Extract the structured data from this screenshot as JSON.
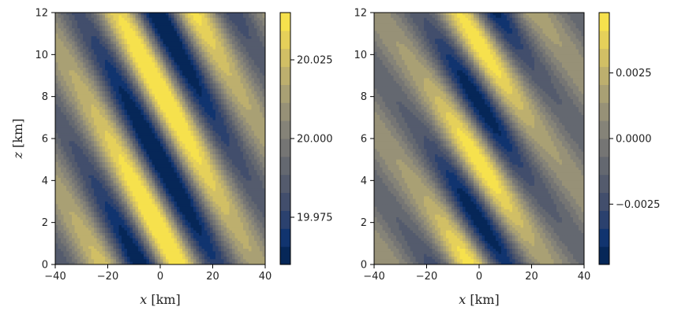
{
  "chart_data": [
    {
      "type": "heatmap",
      "subtype": "filled-contour",
      "xlabel_var": "x",
      "xlabel_unit": "[km]",
      "ylabel_var": "z",
      "ylabel_unit": "[km]",
      "xlim": [
        -40,
        40
      ],
      "ylim": [
        0,
        12
      ],
      "x_ticks": [
        "−40",
        "−20",
        "0",
        "20",
        "40"
      ],
      "y_ticks": [
        "0",
        "2",
        "4",
        "6",
        "8",
        "10",
        "12"
      ],
      "x_tick_values": [
        -40,
        -20,
        0,
        20,
        40
      ],
      "y_tick_values": [
        0,
        2,
        4,
        6,
        8,
        10,
        12
      ],
      "field": {
        "base": 20.0,
        "amplitude": 0.045,
        "vertical_wavelength_km": 6.7,
        "tilt_km_per_km": 0.22,
        "horizontal_halfwidth_km": 26,
        "minima_centers_z_km": [
          4.8,
          11.3
        ],
        "maxima_centers_z_km": [
          1.6,
          8.1
        ]
      },
      "colorbar": {
        "vmin": 19.96,
        "vmax": 20.04,
        "levels": 14,
        "tick_values": [
          19.975,
          20.0,
          20.025
        ],
        "tick_labels": [
          "19.975",
          "20.000",
          "20.025"
        ]
      }
    },
    {
      "type": "heatmap",
      "subtype": "filled-contour",
      "xlabel_var": "x",
      "xlabel_unit": "[km]",
      "xlim": [
        -40,
        40
      ],
      "ylim": [
        0,
        12
      ],
      "x_ticks": [
        "−40",
        "−20",
        "0",
        "20",
        "40"
      ],
      "y_ticks": [
        "0",
        "2",
        "4",
        "6",
        "8",
        "10",
        "12"
      ],
      "x_tick_values": [
        -40,
        -20,
        0,
        20,
        40
      ],
      "y_tick_values": [
        0,
        2,
        4,
        6,
        8,
        10,
        12
      ],
      "field": {
        "base": 0.0,
        "amplitude": 0.0048,
        "vertical_wavelength_km": 5.6,
        "tilt_km_per_km": 0.18,
        "horizontal_halfwidth_km": 18,
        "minima_centers_z_km": [
          2.0,
          7.6
        ],
        "maxima_centers_z_km": [
          4.9,
          10.9
        ]
      },
      "colorbar": {
        "vmin": -0.0048,
        "vmax": 0.0048,
        "levels": 14,
        "tick_values": [
          -0.0025,
          0.0,
          0.0025
        ],
        "tick_labels": [
          "−0.0025",
          "0.0000",
          "0.0025"
        ]
      }
    }
  ],
  "colormap": [
    "#00204d",
    "#123570",
    "#3b496c",
    "#575d6d",
    "#707173",
    "#8a8779",
    "#a69d75",
    "#c4b56c",
    "#e4cf5b",
    "#ffea46"
  ]
}
